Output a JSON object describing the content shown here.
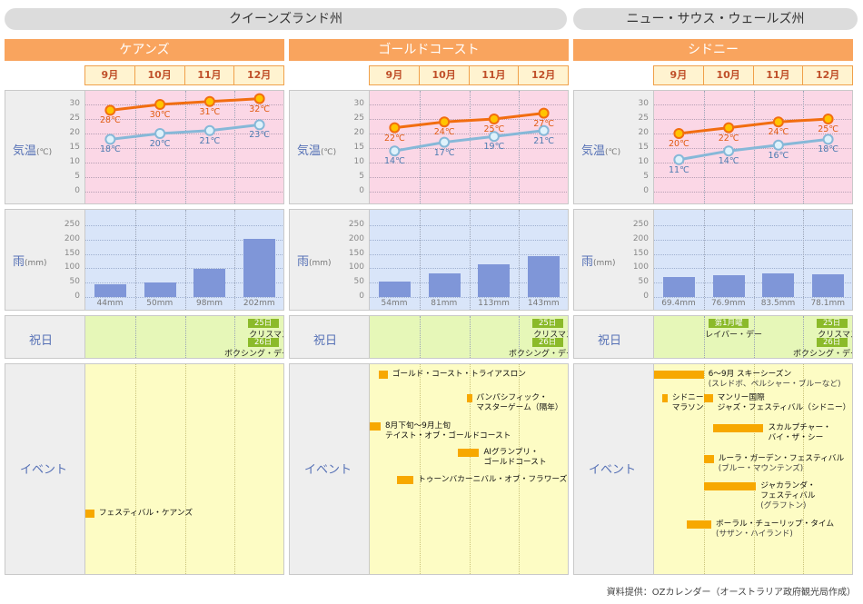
{
  "regions": [
    {
      "name": "クイーンズランド州"
    },
    {
      "name": "ニュー・サウス・ウェールズ州"
    }
  ],
  "months": [
    "9月",
    "10月",
    "11月",
    "12月"
  ],
  "labels": {
    "temp_main": "気温",
    "temp_unit": "(℃)",
    "rain_main": "雨",
    "rain_unit": "(mm)",
    "holiday": "祝日",
    "event": "イベント"
  },
  "colors": {
    "high": "#f26d10",
    "low": "#86b8d8",
    "bar": "#7f96d8",
    "tag": "#8bba2a",
    "event": "#f7a800"
  },
  "footer": "資料提供：OZカレンダー（オーストラリア政府観光局作成）",
  "chart_data": [
    {
      "type": "line",
      "title": "ケアンズ",
      "categories": [
        "9月",
        "10月",
        "11月",
        "12月"
      ],
      "ylim": [
        0,
        30
      ],
      "yticks": [
        "30",
        "25",
        "20",
        "15",
        "10",
        "5",
        "0"
      ],
      "high": {
        "values": [
          28,
          30,
          31,
          32
        ],
        "labels": [
          "28℃",
          "30℃",
          "31℃",
          "32℃"
        ]
      },
      "low": {
        "values": [
          18,
          20,
          21,
          23
        ],
        "labels": [
          "18℃",
          "20℃",
          "21℃",
          "23℃"
        ]
      },
      "rain": {
        "type": "bar",
        "ylim": [
          0,
          250
        ],
        "yticks": [
          "250",
          "200",
          "150",
          "100",
          "50",
          "0"
        ],
        "values": [
          44,
          50,
          98,
          202
        ],
        "labels": [
          "44mm",
          "50mm",
          "98mm",
          "202mm"
        ]
      },
      "holidays": [
        {
          "month": 3,
          "tag": "25日",
          "name": "クリスマス",
          "offset": 0
        },
        {
          "month": 3,
          "tag": "26日",
          "name": "ボクシング・デー",
          "offset": 1
        }
      ],
      "events": [
        {
          "start": 0,
          "end": 0.18,
          "row": 160,
          "lines": [
            "フェスティバル・ケアンズ"
          ]
        }
      ]
    },
    {
      "type": "line",
      "title": "ゴールドコースト",
      "categories": [
        "9月",
        "10月",
        "11月",
        "12月"
      ],
      "ylim": [
        0,
        30
      ],
      "yticks": [
        "30",
        "25",
        "20",
        "15",
        "10",
        "5",
        "0"
      ],
      "high": {
        "values": [
          22,
          24,
          25,
          27
        ],
        "labels": [
          "22℃",
          "24℃",
          "25℃",
          "27℃"
        ]
      },
      "low": {
        "values": [
          14,
          17,
          19,
          21
        ],
        "labels": [
          "14℃",
          "17℃",
          "19℃",
          "21℃"
        ]
      },
      "rain": {
        "type": "bar",
        "ylim": [
          0,
          250
        ],
        "yticks": [
          "250",
          "200",
          "150",
          "100",
          "50",
          "0"
        ],
        "values": [
          54,
          81,
          113,
          143
        ],
        "labels": [
          "54mm",
          "81mm",
          "113mm",
          "143mm"
        ]
      },
      "holidays": [
        {
          "month": 3,
          "tag": "25日",
          "name": "クリスマス",
          "offset": 0
        },
        {
          "month": 3,
          "tag": "26日",
          "name": "ボクシング・デー",
          "offset": 1
        }
      ],
      "events": [
        {
          "start": 0.18,
          "end": 0.36,
          "row": 7,
          "lines": [
            "ゴールド・コースト・トライアスロン"
          ]
        },
        {
          "start": 1.95,
          "end": 2.05,
          "row": 33,
          "lines": [
            "パンパシフィック・",
            "マスターゲーム（隔年）"
          ]
        },
        {
          "start": 0,
          "end": 0.22,
          "row": 64,
          "lines": [
            "8月下旬〜9月上旬",
            "テイスト・オブ・ゴールドコースト"
          ]
        },
        {
          "start": 1.78,
          "end": 2.2,
          "row": 93,
          "lines": [
            "AIグランプリ・",
            "ゴールドコースト"
          ]
        },
        {
          "start": 0.55,
          "end": 0.88,
          "row": 123,
          "lines": [
            "トゥーンバカーニバル・オブ・フラワーズ"
          ]
        }
      ]
    },
    {
      "type": "line",
      "title": "シドニー",
      "categories": [
        "9月",
        "10月",
        "11月",
        "12月"
      ],
      "ylim": [
        0,
        30
      ],
      "yticks": [
        "30",
        "25",
        "20",
        "15",
        "10",
        "5",
        "0"
      ],
      "high": {
        "values": [
          20,
          22,
          24,
          25
        ],
        "labels": [
          "20℃",
          "22℃",
          "24℃",
          "25℃"
        ]
      },
      "low": {
        "values": [
          11,
          14,
          16,
          18
        ],
        "labels": [
          "11℃",
          "14℃",
          "16℃",
          "18℃"
        ]
      },
      "rain": {
        "type": "bar",
        "ylim": [
          0,
          250
        ],
        "yticks": [
          "250",
          "200",
          "150",
          "100",
          "50",
          "0"
        ],
        "values": [
          69.4,
          76.9,
          83.5,
          78.1
        ],
        "labels": [
          "69.4mm",
          "76.9mm",
          "83.5mm",
          "78.1mm"
        ]
      },
      "holidays": [
        {
          "month": 1,
          "tag": "第1月曜",
          "name": "レイバー・デー",
          "offset": 0
        },
        {
          "month": 3,
          "tag": "25日",
          "name": "クリスマス",
          "offset": 0
        },
        {
          "month": 3,
          "tag": "26日",
          "name": "ボクシング・デー",
          "offset": 1
        }
      ],
      "events": [
        {
          "start": 0,
          "end": 1.0,
          "row": 7,
          "lines": [
            "6〜9月 スキーシーズン",
            "(スレドボ、ペルシャー・ブルーなど)"
          ]
        },
        {
          "start": 0.16,
          "end": 0.27,
          "row": 33,
          "lines": [
            "シドニー",
            "マラソン"
          ]
        },
        {
          "start": 1.0,
          "end": 1.18,
          "row": 33,
          "lines": [
            "マンリー国際",
            "ジャズ・フェスティバル（シドニー）"
          ]
        },
        {
          "start": 1.18,
          "end": 2.2,
          "row": 66,
          "lines": [
            "スカルプチャー・",
            "バイ・ザ・シー"
          ]
        },
        {
          "start": 1.0,
          "end": 1.2,
          "row": 100,
          "lines": [
            "ルーラ・ガーデン・フェスティバル",
            "(ブルー・マウンテンズ)"
          ]
        },
        {
          "start": 1.0,
          "end": 2.05,
          "row": 130,
          "lines": [
            "ジャカランダ・",
            "フェスティバル",
            "(グラフトン)"
          ]
        },
        {
          "start": 0.65,
          "end": 1.15,
          "row": 172,
          "lines": [
            "ボーラル・チューリップ・タイム",
            "(サザン・ハイランド)"
          ]
        }
      ]
    }
  ]
}
